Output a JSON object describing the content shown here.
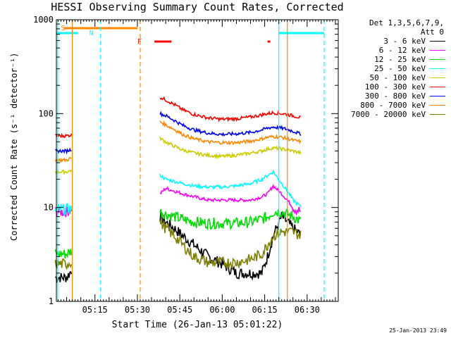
{
  "chart_data": {
    "type": "line",
    "title": "HESSI Observing Summary Count Rates, Corrected",
    "xlabel": "Start Time (26-Jan-13 05:01:22)",
    "ylabel": "Corrected Count Rate (s⁻¹ detector⁻¹)",
    "yscale": "log",
    "ylim": [
      1,
      1000
    ],
    "xlim": [
      "05:01:22",
      "06:41:00"
    ],
    "x_ticks": [
      "05:15",
      "05:30",
      "05:45",
      "06:00",
      "06:15",
      "06:30"
    ],
    "y_ticks": [
      "1",
      "10",
      "100",
      "1000"
    ],
    "legend_header": [
      "Det 1,3,5,6,7,9,",
      "Att 0"
    ],
    "legend_position": "right",
    "series": [
      {
        "name": "3 - 6 keV",
        "color": "#000000",
        "x": [
          "05:01",
          "05:03",
          "05:05",
          "05:07",
          "05:38",
          "05:40",
          "05:43",
          "05:46",
          "05:50",
          "05:55",
          "06:00",
          "06:05",
          "06:10",
          "06:14",
          "06:16",
          "06:18",
          "06:21",
          "06:23",
          "06:25",
          "06:28"
        ],
        "y": [
          1.8,
          1.8,
          1.8,
          2.2,
          8,
          7,
          6,
          5,
          4,
          3,
          2.5,
          2,
          2,
          2,
          3,
          5,
          8,
          7,
          6,
          5
        ]
      },
      {
        "name": "6 - 12 keV",
        "color": "#ff00ff",
        "x": [
          "05:01",
          "05:03",
          "05:05",
          "05:07",
          "05:38",
          "05:40",
          "05:43",
          "05:46",
          "05:50",
          "05:55",
          "06:00",
          "06:05",
          "06:10",
          "06:14",
          "06:16",
          "06:18",
          "06:21",
          "06:23",
          "06:25",
          "06:28"
        ],
        "y": [
          9,
          9,
          9,
          10,
          14,
          16,
          15,
          14,
          13,
          12,
          12,
          12,
          12,
          13,
          14,
          17,
          14,
          12,
          10,
          9
        ]
      },
      {
        "name": "12 - 25 keV",
        "color": "#00dd00",
        "x": [
          "05:01",
          "05:03",
          "05:05",
          "05:07",
          "05:38",
          "05:40",
          "05:43",
          "05:46",
          "05:50",
          "05:55",
          "06:00",
          "06:05",
          "06:10",
          "06:14",
          "06:16",
          "06:18",
          "06:21",
          "06:23",
          "06:25",
          "06:28"
        ],
        "y": [
          3.2,
          3.2,
          3.2,
          3.5,
          9,
          8.5,
          8,
          7.5,
          7,
          6.8,
          6.8,
          6.8,
          7,
          7.5,
          8,
          9,
          9,
          8.5,
          8,
          7
        ]
      },
      {
        "name": "25 - 50 keV",
        "color": "#00ffff",
        "x": [
          "05:01",
          "05:03",
          "05:05",
          "05:07",
          "05:38",
          "05:40",
          "05:43",
          "05:46",
          "05:50",
          "05:55",
          "06:00",
          "06:05",
          "06:10",
          "06:14",
          "06:16",
          "06:18",
          "06:21",
          "06:23",
          "06:25",
          "06:28"
        ],
        "y": [
          9.5,
          9.5,
          9.5,
          10,
          22,
          20,
          19,
          18,
          17,
          16.5,
          16.5,
          17,
          18,
          20,
          22,
          24,
          18,
          15,
          12,
          10
        ]
      },
      {
        "name": "50 - 100 keV",
        "color": "#cccc00",
        "x": [
          "05:01",
          "05:03",
          "05:05",
          "05:07",
          "05:38",
          "05:40",
          "05:43",
          "05:46",
          "05:50",
          "05:55",
          "06:00",
          "06:05",
          "06:10",
          "06:14",
          "06:16",
          "06:18",
          "06:21",
          "06:23",
          "06:25",
          "06:28"
        ],
        "y": [
          24,
          24,
          24,
          25,
          55,
          50,
          45,
          41,
          38,
          36,
          35,
          36,
          38,
          40,
          42,
          43,
          42,
          41,
          40,
          38
        ]
      },
      {
        "name": "100 - 300 keV",
        "color": "#ff0000",
        "x": [
          "05:01",
          "05:03",
          "05:05",
          "05:07",
          "05:38",
          "05:40",
          "05:43",
          "05:46",
          "05:50",
          "05:55",
          "06:00",
          "06:05",
          "06:10",
          "06:14",
          "06:16",
          "06:18",
          "06:21",
          "06:23",
          "06:25",
          "06:28"
        ],
        "y": [
          58,
          58,
          58,
          60,
          150,
          140,
          125,
          110,
          98,
          90,
          87,
          88,
          92,
          97,
          100,
          102,
          100,
          98,
          95,
          90
        ]
      },
      {
        "name": "300 - 800 keV",
        "color": "#0000ff",
        "x": [
          "05:01",
          "05:03",
          "05:05",
          "05:07",
          "05:38",
          "05:40",
          "05:43",
          "05:46",
          "05:50",
          "05:55",
          "06:00",
          "06:05",
          "06:10",
          "06:14",
          "06:16",
          "06:18",
          "06:21",
          "06:23",
          "06:25",
          "06:28"
        ],
        "y": [
          40,
          40,
          40,
          42,
          100,
          95,
          85,
          75,
          67,
          62,
          60,
          61,
          63,
          67,
          70,
          72,
          70,
          68,
          65,
          60
        ]
      },
      {
        "name": "800 - 7000 keV",
        "color": "#ff8800",
        "x": [
          "05:01",
          "05:03",
          "05:05",
          "05:07",
          "05:38",
          "05:40",
          "05:43",
          "05:46",
          "05:50",
          "05:55",
          "06:00",
          "06:05",
          "06:10",
          "06:14",
          "06:16",
          "06:18",
          "06:21",
          "06:23",
          "06:25",
          "06:28"
        ],
        "y": [
          32,
          32,
          32,
          34,
          82,
          76,
          68,
          60,
          54,
          50,
          49,
          49,
          51,
          54,
          56,
          57,
          56,
          54,
          52,
          50
        ]
      },
      {
        "name": "7000 - 20000 keV",
        "color": "#808000",
        "x": [
          "05:01",
          "05:03",
          "05:05",
          "05:07",
          "05:38",
          "05:40",
          "05:43",
          "05:46",
          "05:50",
          "05:55",
          "06:00",
          "06:05",
          "06:10",
          "06:14",
          "06:16",
          "06:18",
          "06:21",
          "06:23",
          "06:25",
          "06:28"
        ],
        "y": [
          2.5,
          2.5,
          2.5,
          2.7,
          7,
          6,
          5,
          4,
          3,
          2.6,
          2.6,
          2.6,
          2.8,
          3.2,
          4,
          5,
          5.5,
          5.5,
          5.5,
          5
        ]
      }
    ],
    "annotations": [
      {
        "label": "S",
        "color": "#ff8800"
      },
      {
        "label": "N",
        "color": "#00ffff"
      },
      {
        "label": "F",
        "color": "#ff0000"
      }
    ]
  },
  "timestamp": "25-Jan-2013 23:49"
}
